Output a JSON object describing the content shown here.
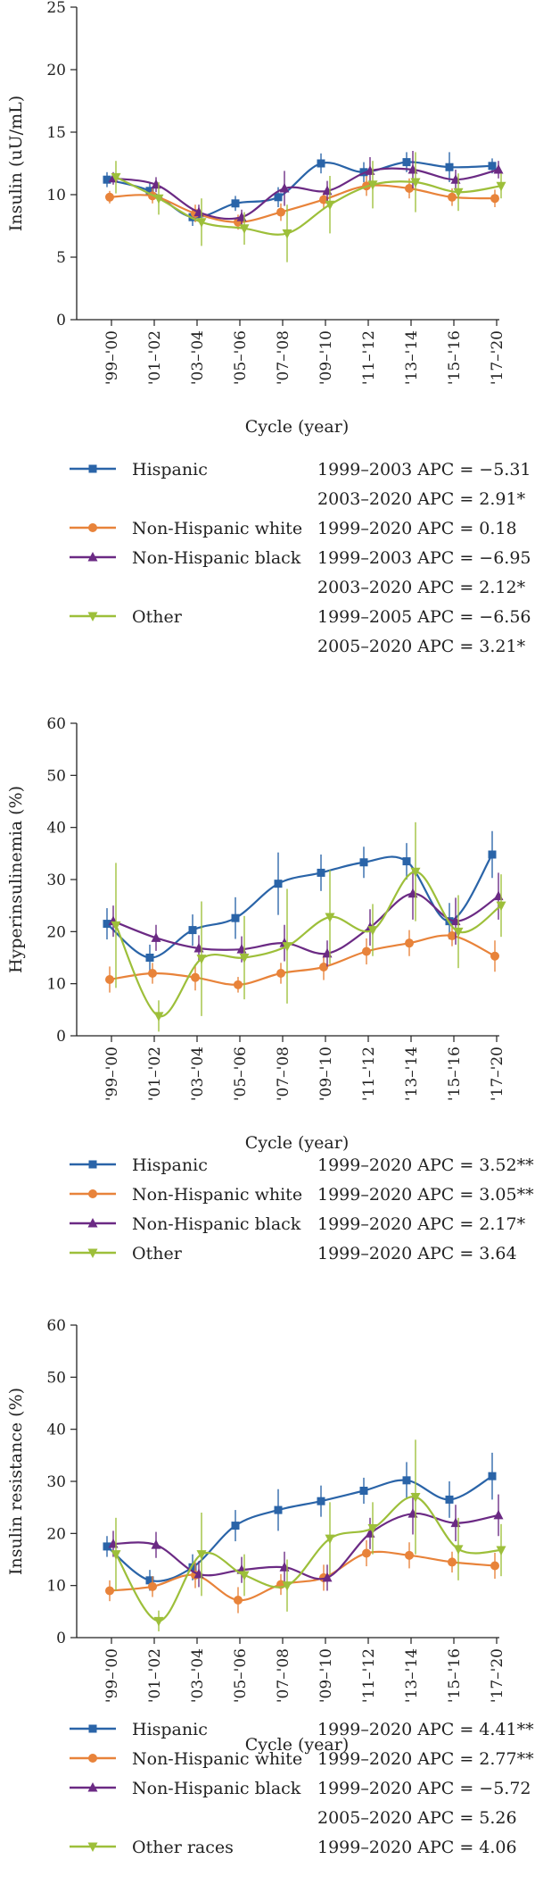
{
  "colors": {
    "hispanic": "#2a64a8",
    "white": "#e8833a",
    "black": "#6b2a84",
    "other": "#9dbf3a"
  },
  "chart_data": [
    {
      "type": "line",
      "ylabel": "Insulin (uU/mL)",
      "xlabel": "Cycle (year)",
      "ylim": [
        0,
        25
      ],
      "yticks": [
        "0",
        "5",
        "10",
        "15",
        "20",
        "25"
      ],
      "categories": [
        "'99–'00",
        "'01–'02",
        "'03–'04",
        "'05–'06",
        "'07–'08",
        "'09–'10",
        "'11–'12",
        "'13–'14",
        "'15–'16",
        "'17–'20"
      ],
      "series": [
        {
          "name": "Hispanic",
          "key": "hispanic",
          "marker": "square",
          "values": [
            11.2,
            10.3,
            8.2,
            9.3,
            9.8,
            12.5,
            11.8,
            12.6,
            12.2,
            12.3
          ],
          "err": [
            0.6,
            0.6,
            0.7,
            0.6,
            0.8,
            0.8,
            0.8,
            0.8,
            1.2,
            0.6
          ]
        },
        {
          "name": "Non-Hispanic white",
          "key": "white",
          "marker": "circle",
          "values": [
            9.8,
            9.9,
            8.5,
            7.8,
            8.6,
            9.6,
            10.7,
            10.5,
            9.8,
            9.7
          ],
          "err": [
            0.5,
            0.6,
            0.7,
            0.6,
            0.7,
            0.7,
            0.8,
            0.8,
            0.7,
            0.7
          ]
        },
        {
          "name": "Non-Hispanic black",
          "key": "black",
          "marker": "triangle-up",
          "values": [
            11.3,
            10.8,
            8.6,
            8.2,
            10.5,
            10.3,
            11.9,
            12.0,
            11.2,
            12.0
          ],
          "err": [
            0.5,
            0.6,
            0.6,
            0.6,
            1.4,
            0.8,
            1.1,
            1.5,
            0.8,
            0.7
          ]
        },
        {
          "name": "Other",
          "key": "other",
          "marker": "triangle-down",
          "values": [
            11.4,
            9.7,
            7.8,
            7.3,
            6.9,
            9.2,
            10.8,
            11.0,
            10.2,
            10.7
          ],
          "err": [
            1.3,
            1.3,
            1.9,
            1.3,
            2.3,
            2.3,
            1.9,
            2.4,
            1.5,
            1.0
          ]
        }
      ],
      "legend": [
        {
          "key": "hispanic",
          "label": "Hispanic",
          "apc": [
            "1999–2003 APC = −5.31",
            "2003–2020 APC = 2.91*"
          ]
        },
        {
          "key": "white",
          "label": "Non-Hispanic white",
          "apc": [
            "1999–2020 APC = 0.18"
          ]
        },
        {
          "key": "black",
          "label": "Non-Hispanic black",
          "apc": [
            "1999–2003 APC = −6.95",
            "2003–2020 APC = 2.12*"
          ]
        },
        {
          "key": "other",
          "label": "Other",
          "apc": [
            "1999–2005 APC = −6.56",
            "2005–2020 APC = 3.21*"
          ]
        }
      ]
    },
    {
      "type": "line",
      "ylabel": "Hyperinsulinemia (%)",
      "xlabel": "Cycle (year)",
      "ylim": [
        0,
        60
      ],
      "yticks": [
        "0",
        "10",
        "20",
        "30",
        "40",
        "50",
        "60"
      ],
      "categories": [
        "'99–'00",
        "'01–'02",
        "'03–'04",
        "'05–'06",
        "'07–'08",
        "'09–'10",
        "'11–'12",
        "'13–'14",
        "'15–'16",
        "'17–'20"
      ],
      "series": [
        {
          "name": "Hispanic",
          "key": "hispanic",
          "marker": "square",
          "values": [
            21.5,
            15.0,
            20.3,
            22.6,
            29.2,
            31.3,
            33.3,
            33.5,
            22.0,
            34.8
          ],
          "err": [
            3.0,
            2.5,
            3.0,
            4.0,
            6.0,
            3.5,
            3.0,
            3.5,
            3.5,
            4.5
          ]
        },
        {
          "name": "Non-Hispanic white",
          "key": "white",
          "marker": "circle",
          "values": [
            10.8,
            12.0,
            11.2,
            9.8,
            12.0,
            13.2,
            16.2,
            17.8,
            19.2,
            15.3
          ],
          "err": [
            2.5,
            2.0,
            2.5,
            1.5,
            2.0,
            2.5,
            2.5,
            2.5,
            2.0,
            3.0
          ]
        },
        {
          "name": "Non-Hispanic black",
          "key": "black",
          "marker": "triangle-up",
          "values": [
            22.0,
            18.8,
            16.8,
            16.6,
            17.8,
            15.8,
            20.8,
            27.3,
            22.0,
            26.8
          ],
          "err": [
            3.0,
            2.5,
            2.5,
            2.5,
            3.5,
            2.5,
            3.5,
            5.0,
            4.5,
            4.5
          ]
        },
        {
          "name": "Other",
          "key": "other",
          "marker": "triangle-down",
          "values": [
            21.2,
            3.8,
            14.8,
            15.0,
            17.2,
            22.8,
            20.3,
            31.5,
            20.0,
            25.0
          ],
          "err": [
            12.0,
            3.0,
            11.0,
            8.0,
            11.0,
            9.0,
            5.0,
            9.5,
            7.0,
            6.0
          ]
        }
      ],
      "legend": [
        {
          "key": "hispanic",
          "label": "Hispanic",
          "apc": [
            "1999–2020 APC = 3.52**"
          ]
        },
        {
          "key": "white",
          "label": "Non-Hispanic white",
          "apc": [
            "1999–2020 APC = 3.05**"
          ]
        },
        {
          "key": "black",
          "label": "Non-Hispanic black",
          "apc": [
            "1999–2020 APC = 2.17*"
          ]
        },
        {
          "key": "other",
          "label": "Other",
          "apc": [
            "1999–2020 APC = 3.64"
          ]
        }
      ]
    },
    {
      "type": "line",
      "ylabel": "Insulin resistance (%)",
      "xlabel": "Cycle (year)",
      "ylim": [
        0,
        60
      ],
      "yticks": [
        "0",
        "10",
        "20",
        "30",
        "40",
        "50",
        "60"
      ],
      "categories": [
        "'99–'00",
        "'01–'02",
        "'03–'04",
        "'05–'06",
        "'07–'08",
        "'09–'10",
        "'11–'12",
        "'13–'14",
        "'15–'16",
        "'17–'20"
      ],
      "series": [
        {
          "name": "Hispanic",
          "key": "hispanic",
          "marker": "square",
          "values": [
            17.5,
            11.0,
            13.5,
            21.5,
            24.5,
            26.2,
            28.2,
            30.2,
            26.5,
            31.0
          ],
          "err": [
            2.0,
            2.0,
            2.5,
            3.0,
            4.0,
            3.0,
            2.5,
            3.5,
            3.5,
            4.5
          ]
        },
        {
          "name": "Non-Hispanic white",
          "key": "white",
          "marker": "circle",
          "values": [
            9.0,
            9.8,
            12.0,
            7.2,
            10.2,
            11.5,
            16.2,
            15.8,
            14.5,
            13.8
          ],
          "err": [
            2.0,
            2.0,
            2.5,
            2.5,
            2.0,
            2.5,
            2.5,
            2.5,
            2.0,
            2.5
          ]
        },
        {
          "name": "Non-Hispanic black",
          "key": "black",
          "marker": "triangle-up",
          "values": [
            18.0,
            17.8,
            12.2,
            13.0,
            13.5,
            11.5,
            20.0,
            23.8,
            22.0,
            23.5
          ],
          "err": [
            2.5,
            2.5,
            2.5,
            2.5,
            3.0,
            2.5,
            3.0,
            4.0,
            3.5,
            4.0
          ]
        },
        {
          "name": "Other races",
          "key": "other",
          "marker": "triangle-down",
          "values": [
            16.0,
            3.2,
            16.0,
            12.0,
            10.0,
            19.0,
            21.0,
            27.0,
            17.0,
            16.8
          ],
          "err": [
            7.0,
            2.0,
            8.0,
            4.0,
            5.0,
            7.0,
            5.0,
            11.0,
            6.0,
            5.0
          ]
        }
      ],
      "legend": [
        {
          "key": "hispanic",
          "label": "Hispanic",
          "apc": [
            "1999–2020 APC = 4.41**"
          ]
        },
        {
          "key": "white",
          "label": "Non-Hispanic white",
          "apc": [
            "1999–2020 APC = 2.77**"
          ]
        },
        {
          "key": "black",
          "label": "Non-Hispanic black",
          "apc": [
            "1999–2020 APC = −5.72",
            "2005–2020 APC = 5.26"
          ]
        },
        {
          "key": "other",
          "label": "Other races",
          "apc": [
            "1999–2020 APC = 4.06"
          ]
        }
      ]
    }
  ]
}
